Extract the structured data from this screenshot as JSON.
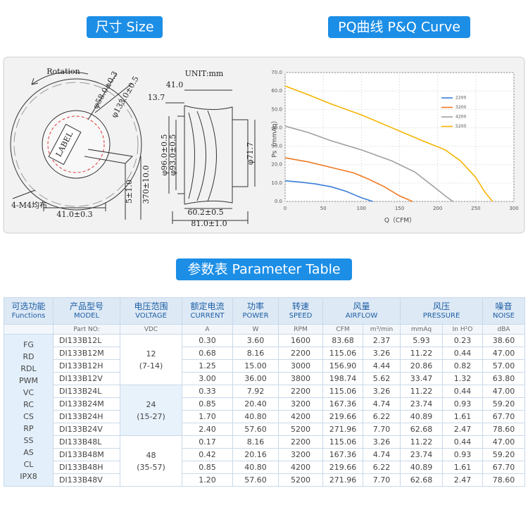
{
  "badges": {
    "size": "尺寸 Size",
    "pq": "PQ曲线 P&Q Curve",
    "params": "参数表 Parameter Table"
  },
  "drawing": {
    "rotation": "Rotation",
    "d58": "φ58.0±0.3",
    "d133": "φ133.0±0.5",
    "mount": "4-M4均布",
    "label": "LABEL",
    "w41": "41.0±0.3",
    "h5": "5±1.0",
    "lead": "370±10.0",
    "unit": "UNIT:mm",
    "s41": "41.0",
    "s13": "13.7",
    "d96": "φ96.0±0.5",
    "d93": "φ93.0±0.5",
    "d71": "φ71.7",
    "w60": "60.2±0.5",
    "w81": "81.0±1.0"
  },
  "pq_chart": {
    "type": "line",
    "xlabel": "Q（CFM）",
    "ylabel": "Ps（mmAq）",
    "xlim": [
      0,
      300
    ],
    "ylim": [
      0,
      70
    ],
    "xticks": [
      0,
      50,
      100,
      150,
      200,
      250,
      300
    ],
    "yticks": [
      {
        "value": 0,
        "label": "0.0"
      },
      {
        "value": 10,
        "label": "10.0"
      },
      {
        "value": 20,
        "label": "20.0"
      },
      {
        "value": 30,
        "label": "30.0"
      },
      {
        "value": 40,
        "label": "40.0"
      },
      {
        "value": 50,
        "label": "50.0"
      },
      {
        "value": 60,
        "label": "60.0"
      },
      {
        "value": 70,
        "label": "70.0"
      }
    ],
    "grid": true,
    "series": [
      {
        "name": "2200",
        "color": "#3b7dd8",
        "x": [
          0,
          20,
          40,
          60,
          80,
          100,
          115
        ],
        "values": [
          11.2,
          10.5,
          9.5,
          8,
          5.5,
          2,
          0
        ]
      },
      {
        "name": "3200",
        "color": "#f07a22",
        "x": [
          0,
          30,
          60,
          90,
          110,
          130,
          150,
          167
        ],
        "values": [
          23.7,
          21.5,
          18.5,
          15.5,
          12,
          8,
          3,
          0
        ]
      },
      {
        "name": "4200",
        "color": "#a0a0a0",
        "x": [
          0,
          30,
          60,
          100,
          140,
          170,
          195,
          210,
          220
        ],
        "values": [
          40.9,
          37.5,
          33,
          28,
          22,
          16,
          8,
          3,
          0
        ]
      },
      {
        "name": "5200",
        "color": "#f5b400",
        "x": [
          0,
          30,
          60,
          100,
          140,
          180,
          210,
          230,
          250,
          262,
          272
        ],
        "values": [
          62.7,
          58,
          53,
          47,
          40,
          33,
          28,
          22,
          13,
          5,
          0
        ]
      }
    ]
  },
  "table": {
    "header": [
      [
        "可选功能",
        "Functions"
      ],
      [
        "产品型号",
        "MODEL"
      ],
      [
        "电压范围",
        "VOLTAGE"
      ],
      [
        "额定电流",
        "CURRENT"
      ],
      [
        "功率",
        "POWER"
      ],
      [
        "转速",
        "SPEED"
      ],
      [
        "风量",
        "AIRFLOW"
      ],
      [
        "风压",
        "PRESSURE"
      ],
      [
        "噪音",
        "NOISE"
      ]
    ],
    "subheader": [
      "Part NO:",
      "VDC",
      "A",
      "W",
      "RPM",
      "CFM",
      "m³/min",
      "mmAq",
      "In H²O",
      "dBA"
    ],
    "functions": [
      "FG",
      "RD",
      "RDL",
      "PWM",
      "VC",
      "RC",
      "CS",
      "RP",
      "SS",
      "AS",
      "CL",
      "IPX8"
    ],
    "voltage_groups": [
      [
        "12",
        "(7-14)"
      ],
      [
        "24",
        "(15-27)"
      ],
      [
        "48",
        "(35-57)"
      ]
    ],
    "rows": [
      [
        "DI133B12L",
        "0.30",
        "3.60",
        "1600",
        "83.68",
        "2.37",
        "5.93",
        "0.23",
        "38.60"
      ],
      [
        "DI133B12M",
        "0.68",
        "8.16",
        "2200",
        "115.06",
        "3.26",
        "11.22",
        "0.44",
        "47.00"
      ],
      [
        "DI133B12H",
        "1.25",
        "15.00",
        "3000",
        "156.90",
        "4.44",
        "20.86",
        "0.82",
        "57.00"
      ],
      [
        "DI133B12V",
        "3.00",
        "36.00",
        "3800",
        "198.74",
        "5.62",
        "33.47",
        "1.32",
        "63.80"
      ],
      [
        "DI133B24L",
        "0.33",
        "7.92",
        "2200",
        "115.06",
        "3.26",
        "11.22",
        "0.44",
        "47.00"
      ],
      [
        "DI133B24M",
        "0.85",
        "20.40",
        "3200",
        "167.36",
        "4.74",
        "23.74",
        "0.93",
        "59.20"
      ],
      [
        "DI133B24H",
        "1.70",
        "40.80",
        "4200",
        "219.66",
        "6.22",
        "40.89",
        "1.61",
        "67.70"
      ],
      [
        "DI133B24V",
        "2.40",
        "57.60",
        "5200",
        "271.96",
        "7.70",
        "62.68",
        "2.47",
        "78.60"
      ],
      [
        "DI133B48L",
        "0.17",
        "8.16",
        "2200",
        "115.06",
        "3.26",
        "11.22",
        "0.44",
        "47.00"
      ],
      [
        "DI133B48M",
        "0.42",
        "20.16",
        "3200",
        "167.36",
        "4.74",
        "23.74",
        "0.93",
        "59.20"
      ],
      [
        "DI133B48H",
        "0.85",
        "40.80",
        "4200",
        "219.66",
        "6.22",
        "40.89",
        "1.61",
        "67.70"
      ],
      [
        "DI133B48V",
        "1.20",
        "57.60",
        "5200",
        "271.96",
        "7.70",
        "62.68",
        "2.47",
        "78.60"
      ]
    ]
  }
}
